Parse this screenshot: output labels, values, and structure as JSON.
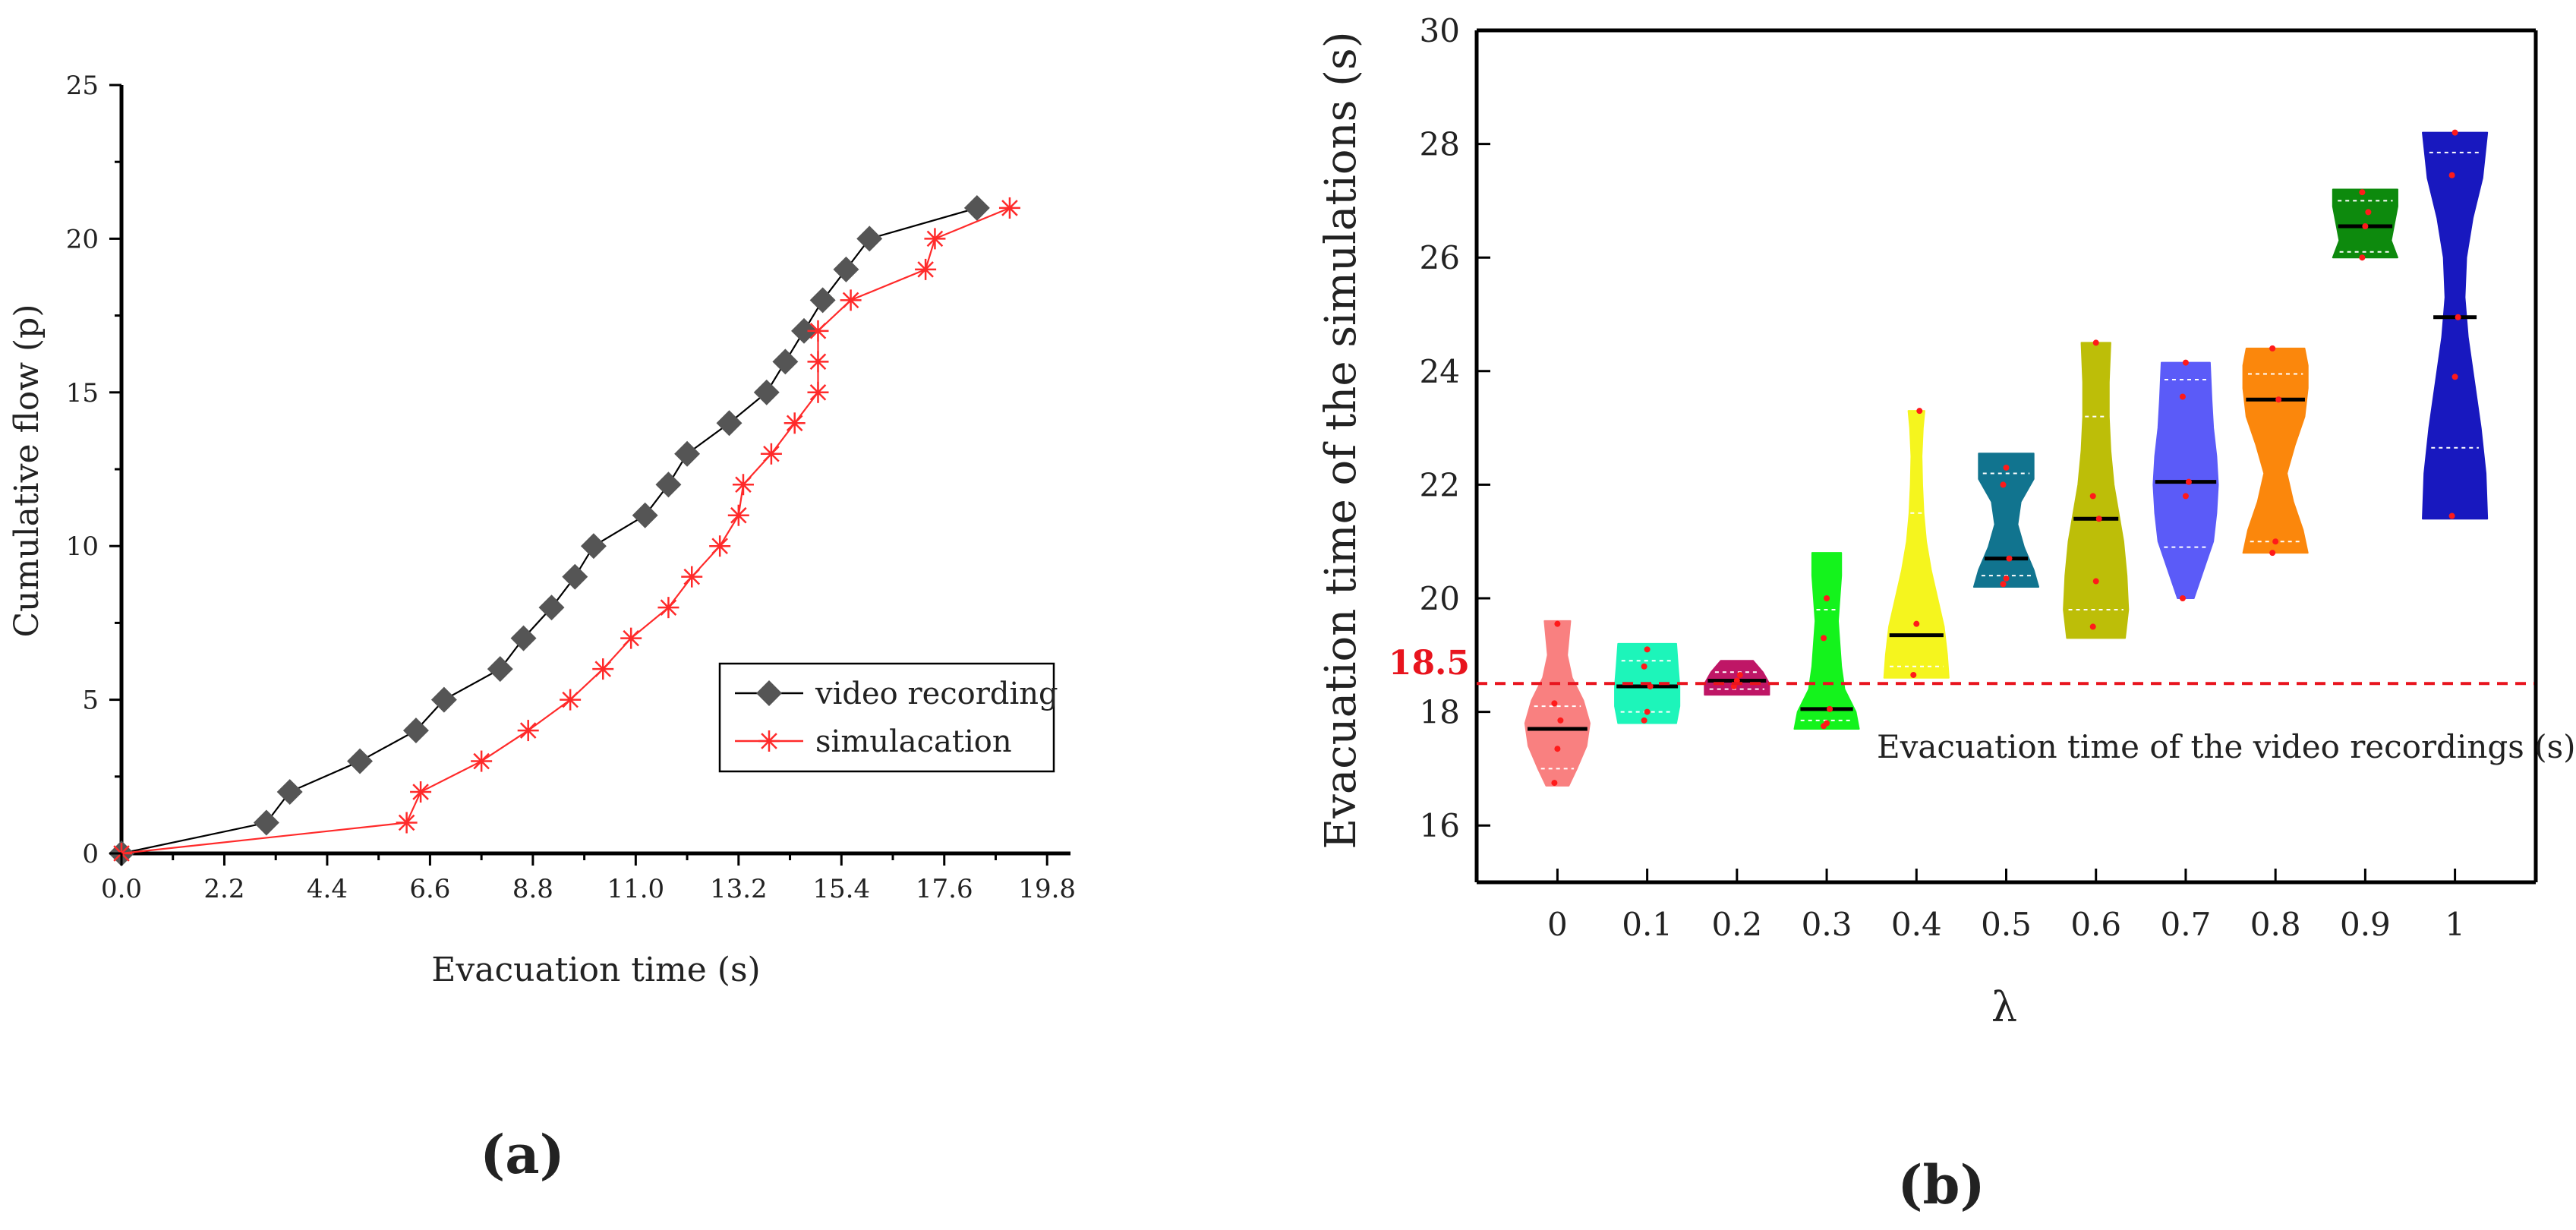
{
  "chart_data": [
    {
      "panel_label": "(a)",
      "type": "line",
      "xlabel": "Evacuation time (s)",
      "ylabel": "Cumulative flow (p)",
      "xlim": [
        0,
        20.3
      ],
      "ylim": [
        0,
        25
      ],
      "xticks": [
        0,
        2.2,
        4.4,
        6.6,
        8.8,
        11.0,
        13.2,
        15.4,
        17.6,
        19.8
      ],
      "xtick_labels": [
        "0.0",
        "2.2",
        "4.4",
        "6.6",
        "8.8",
        "11.0",
        "13.2",
        "15.4",
        "17.6",
        "19.8"
      ],
      "yticks": [
        0,
        5,
        10,
        15,
        20,
        25
      ],
      "ytick_labels": [
        "0",
        "5",
        "10",
        "15",
        "20",
        "25"
      ],
      "legend_position": "lower-right",
      "series": [
        {
          "name": "video recording",
          "marker": "diamond",
          "color": "#555555",
          "line_color": "#000000",
          "x": [
            0.0,
            3.1,
            3.6,
            5.1,
            6.3,
            6.9,
            8.1,
            8.6,
            9.2,
            9.7,
            10.1,
            11.2,
            11.7,
            12.1,
            13.0,
            13.8,
            14.2,
            14.6,
            15.0,
            15.5,
            16.0,
            18.3
          ],
          "y": [
            0,
            1,
            2,
            3,
            4,
            5,
            6,
            7,
            8,
            9,
            10,
            11,
            12,
            13,
            14,
            15,
            16,
            17,
            18,
            19,
            20,
            21
          ]
        },
        {
          "name": "simulacation",
          "marker": "asterisk",
          "color": "#ff2a2a",
          "line_color": "#ff2a2a",
          "x": [
            0.0,
            6.1,
            6.4,
            7.7,
            8.7,
            9.6,
            10.3,
            10.9,
            11.7,
            12.2,
            12.8,
            13.2,
            13.3,
            13.9,
            14.4,
            14.9,
            14.9,
            14.9,
            15.6,
            17.2,
            17.4,
            19.0
          ],
          "y": [
            0,
            1,
            2,
            3,
            4,
            5,
            6,
            7,
            8,
            9,
            10,
            11,
            12,
            13,
            14,
            15,
            16,
            17,
            18,
            19,
            20,
            21
          ]
        }
      ]
    },
    {
      "panel_label": "(b)",
      "type": "violin",
      "xlabel": "λ",
      "ylabel": "Evacuation time of the simulations (s)",
      "ylim": [
        15,
        30
      ],
      "yticks": [
        16,
        18,
        20,
        22,
        24,
        26,
        28,
        30
      ],
      "ytick_labels": [
        "16",
        "18",
        "20",
        "22",
        "24",
        "26",
        "28",
        "30"
      ],
      "categories": [
        "0",
        "0.1",
        "0.2",
        "0.3",
        "0.4",
        "0.5",
        "0.6",
        "0.7",
        "0.8",
        "0.9",
        "1"
      ],
      "reference_line": {
        "value": 18.5,
        "label": "18.5",
        "annotation": "Evacuation time of the video recordings (s)",
        "color": "#e8141e"
      },
      "violins": [
        {
          "category": "0",
          "color": "#f98080",
          "min": 16.7,
          "max": 19.6,
          "median": 17.7,
          "q1": 17.0,
          "q3": 18.1,
          "profile": [
            [
              16.7,
              0.35
            ],
            [
              17.0,
              0.6
            ],
            [
              17.4,
              0.9
            ],
            [
              17.8,
              1.0
            ],
            [
              18.2,
              0.8
            ],
            [
              18.6,
              0.45
            ],
            [
              19.0,
              0.3
            ],
            [
              19.3,
              0.35
            ],
            [
              19.6,
              0.4
            ]
          ],
          "points": [
            16.75,
            17.35,
            17.85,
            18.15,
            19.55
          ]
        },
        {
          "category": "0.1",
          "color": "#1df5ba",
          "min": 17.8,
          "max": 19.2,
          "median": 18.45,
          "q1": 18.0,
          "q3": 18.9,
          "profile": [
            [
              17.8,
              0.9
            ],
            [
              18.1,
              1.0
            ],
            [
              18.45,
              1.0
            ],
            [
              18.8,
              0.95
            ],
            [
              19.2,
              0.9
            ]
          ],
          "points": [
            17.85,
            18.0,
            18.45,
            18.8,
            19.1
          ]
        },
        {
          "category": "0.2",
          "color": "#bf1666",
          "min": 18.3,
          "max": 18.9,
          "median": 18.55,
          "q1": 18.4,
          "q3": 18.7,
          "profile": [
            [
              18.3,
              1.0
            ],
            [
              18.5,
              1.0
            ],
            [
              18.7,
              0.8
            ],
            [
              18.9,
              0.5
            ]
          ],
          "points": [
            18.45,
            18.55,
            18.65
          ]
        },
        {
          "category": "0.3",
          "color": "#14f31c",
          "min": 17.7,
          "max": 20.8,
          "median": 18.05,
          "q1": 17.85,
          "q3": 19.8,
          "profile": [
            [
              17.7,
              1.0
            ],
            [
              18.0,
              0.9
            ],
            [
              18.4,
              0.55
            ],
            [
              18.8,
              0.45
            ],
            [
              19.2,
              0.4
            ],
            [
              19.6,
              0.35
            ],
            [
              20.0,
              0.4
            ],
            [
              20.4,
              0.45
            ],
            [
              20.8,
              0.45
            ]
          ],
          "points": [
            17.75,
            17.8,
            18.05,
            19.3,
            20.0
          ]
        },
        {
          "category": "0.4",
          "color": "#f5f51e",
          "min": 18.6,
          "max": 23.3,
          "median": 19.35,
          "q1": 18.8,
          "q3": 21.5,
          "profile": [
            [
              18.6,
              1.0
            ],
            [
              19.0,
              0.95
            ],
            [
              19.5,
              0.85
            ],
            [
              20.0,
              0.65
            ],
            [
              20.5,
              0.45
            ],
            [
              21.0,
              0.3
            ],
            [
              21.5,
              0.22
            ],
            [
              22.0,
              0.18
            ],
            [
              22.5,
              0.16
            ],
            [
              23.0,
              0.2
            ],
            [
              23.3,
              0.25
            ]
          ],
          "points": [
            18.65,
            19.55,
            23.3
          ]
        },
        {
          "category": "0.5",
          "color": "#11748f",
          "min": 20.2,
          "max": 22.55,
          "median": 20.7,
          "q1": 20.4,
          "q3": 22.2,
          "profile": [
            [
              20.2,
              1.0
            ],
            [
              20.5,
              0.85
            ],
            [
              20.9,
              0.55
            ],
            [
              21.3,
              0.35
            ],
            [
              21.7,
              0.45
            ],
            [
              22.1,
              0.85
            ],
            [
              22.55,
              0.85
            ]
          ],
          "points": [
            20.25,
            20.35,
            20.7,
            22.0,
            22.3
          ]
        },
        {
          "category": "0.6",
          "color": "#bdbe08",
          "min": 19.3,
          "max": 24.5,
          "median": 21.4,
          "q1": 19.8,
          "q3": 23.2,
          "profile": [
            [
              19.3,
              0.9
            ],
            [
              19.8,
              1.0
            ],
            [
              20.4,
              0.95
            ],
            [
              21.0,
              0.85
            ],
            [
              21.5,
              0.7
            ],
            [
              22.0,
              0.55
            ],
            [
              22.6,
              0.45
            ],
            [
              23.2,
              0.4
            ],
            [
              23.8,
              0.4
            ],
            [
              24.5,
              0.45
            ]
          ],
          "points": [
            19.5,
            20.3,
            21.4,
            21.8,
            24.5
          ]
        },
        {
          "category": "0.7",
          "color": "#5b5bf8",
          "min": 20.0,
          "max": 24.15,
          "median": 22.05,
          "q1": 20.9,
          "q3": 23.85,
          "profile": [
            [
              20.0,
              0.25
            ],
            [
              20.5,
              0.55
            ],
            [
              21.0,
              0.85
            ],
            [
              21.5,
              0.95
            ],
            [
              22.0,
              1.0
            ],
            [
              22.5,
              0.95
            ],
            [
              23.0,
              0.85
            ],
            [
              23.5,
              0.8
            ],
            [
              24.15,
              0.75
            ]
          ],
          "points": [
            20.0,
            21.8,
            22.05,
            23.55,
            24.15
          ]
        },
        {
          "category": "0.8",
          "color": "#fb870c",
          "min": 20.8,
          "max": 24.4,
          "median": 23.5,
          "q1": 21.0,
          "q3": 23.95,
          "profile": [
            [
              20.8,
              1.0
            ],
            [
              21.2,
              0.85
            ],
            [
              21.7,
              0.55
            ],
            [
              22.2,
              0.35
            ],
            [
              22.7,
              0.6
            ],
            [
              23.2,
              0.9
            ],
            [
              23.7,
              1.0
            ],
            [
              24.1,
              1.0
            ],
            [
              24.4,
              0.9
            ]
          ],
          "points": [
            20.8,
            21.0,
            23.5,
            24.4
          ]
        },
        {
          "category": "0.9",
          "color": "#0d8a0d",
          "min": 26.0,
          "max": 27.2,
          "median": 26.55,
          "q1": 26.1,
          "q3": 27.0,
          "profile": [
            [
              26.0,
              1.0
            ],
            [
              26.3,
              0.8
            ],
            [
              26.6,
              0.9
            ],
            [
              26.9,
              1.0
            ],
            [
              27.2,
              1.0
            ]
          ],
          "points": [
            26.0,
            26.55,
            26.8,
            27.15
          ]
        },
        {
          "category": "1",
          "color": "#1818bf",
          "min": 21.4,
          "max": 28.2,
          "median": 24.95,
          "q1": 22.65,
          "q3": 27.85,
          "profile": [
            [
              21.4,
              1.0
            ],
            [
              22.2,
              0.95
            ],
            [
              23.0,
              0.8
            ],
            [
              23.8,
              0.6
            ],
            [
              24.6,
              0.4
            ],
            [
              25.3,
              0.3
            ],
            [
              26.0,
              0.35
            ],
            [
              26.7,
              0.55
            ],
            [
              27.4,
              0.85
            ],
            [
              28.2,
              1.0
            ]
          ],
          "points": [
            21.45,
            23.9,
            24.95,
            27.45,
            28.2
          ]
        }
      ]
    }
  ]
}
